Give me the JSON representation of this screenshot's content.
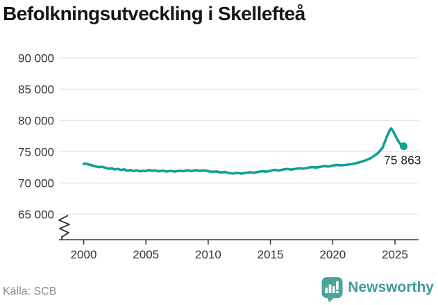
{
  "title": "Befolkningsutveckling i Skellefteå",
  "source": "Källa: SCB",
  "branding": {
    "name": "Newsworthy"
  },
  "colors": {
    "line": "#10a096",
    "grid": "#dedede",
    "axis": "#3c3c3c",
    "tick_text": "#333333",
    "end_label": "#1f1f1f",
    "title": "#161616",
    "muted": "#8c8c8c",
    "brand_text": "#3f9b95",
    "brand_square": "#4ba39d"
  },
  "chart_data": {
    "type": "line",
    "title": "Befolkningsutveckling i Skellefteå",
    "xlabel": "",
    "ylabel": "",
    "grid": "horizontal",
    "legend": "none",
    "axis_break_bottom_left": true,
    "x_ticks": [
      2000,
      2005,
      2010,
      2015,
      2020,
      2025
    ],
    "x_tick_labels": [
      "2000",
      "2005",
      "2010",
      "2015",
      "2020",
      "2025"
    ],
    "y_ticks": [
      90000,
      85000,
      80000,
      75000,
      70000,
      65000
    ],
    "y_tick_labels": [
      "90 000",
      "85 000",
      "80 000",
      "75 000",
      "70 000",
      "65 000"
    ],
    "ylim_display": [
      65000,
      90000
    ],
    "xlim_display": [
      1998.1,
      2026.9
    ],
    "end_label": "75 863",
    "series": [
      {
        "name": "Befolkning",
        "end_value": 75863,
        "points": [
          [
            2000.0,
            73050
          ],
          [
            2000.17,
            73110
          ],
          [
            2000.33,
            72980
          ],
          [
            2000.5,
            72900
          ],
          [
            2000.75,
            72760
          ],
          [
            2001.0,
            72620
          ],
          [
            2001.25,
            72520
          ],
          [
            2001.5,
            72580
          ],
          [
            2001.75,
            72420
          ],
          [
            2002.0,
            72280
          ],
          [
            2002.25,
            72340
          ],
          [
            2002.5,
            72160
          ],
          [
            2002.75,
            72240
          ],
          [
            2003.0,
            72060
          ],
          [
            2003.25,
            72170
          ],
          [
            2003.5,
            71960
          ],
          [
            2003.75,
            72070
          ],
          [
            2004.0,
            71900
          ],
          [
            2004.25,
            72020
          ],
          [
            2004.5,
            71860
          ],
          [
            2004.75,
            71970
          ],
          [
            2005.0,
            71900
          ],
          [
            2005.25,
            72060
          ],
          [
            2005.5,
            71930
          ],
          [
            2005.75,
            72010
          ],
          [
            2006.0,
            71860
          ],
          [
            2006.33,
            71970
          ],
          [
            2006.66,
            71820
          ],
          [
            2007.0,
            71920
          ],
          [
            2007.33,
            71810
          ],
          [
            2007.66,
            71950
          ],
          [
            2008.0,
            71890
          ],
          [
            2008.33,
            72010
          ],
          [
            2008.66,
            71900
          ],
          [
            2009.0,
            72050
          ],
          [
            2009.33,
            71940
          ],
          [
            2009.66,
            72010
          ],
          [
            2010.0,
            71890
          ],
          [
            2010.33,
            71760
          ],
          [
            2010.66,
            71850
          ],
          [
            2011.0,
            71670
          ],
          [
            2011.33,
            71760
          ],
          [
            2011.66,
            71590
          ],
          [
            2012.0,
            71500
          ],
          [
            2012.33,
            71610
          ],
          [
            2012.66,
            71500
          ],
          [
            2013.0,
            71600
          ],
          [
            2013.33,
            71710
          ],
          [
            2013.66,
            71620
          ],
          [
            2014.0,
            71760
          ],
          [
            2014.33,
            71870
          ],
          [
            2014.66,
            71800
          ],
          [
            2015.0,
            71950
          ],
          [
            2015.33,
            72090
          ],
          [
            2015.66,
            71990
          ],
          [
            2016.0,
            72130
          ],
          [
            2016.33,
            72240
          ],
          [
            2016.66,
            72130
          ],
          [
            2017.0,
            72240
          ],
          [
            2017.33,
            72370
          ],
          [
            2017.66,
            72280
          ],
          [
            2018.0,
            72420
          ],
          [
            2018.33,
            72530
          ],
          [
            2018.66,
            72460
          ],
          [
            2019.0,
            72570
          ],
          [
            2019.33,
            72710
          ],
          [
            2019.66,
            72620
          ],
          [
            2020.0,
            72780
          ],
          [
            2020.33,
            72880
          ],
          [
            2020.66,
            72810
          ],
          [
            2021.0,
            72870
          ],
          [
            2021.33,
            72970
          ],
          [
            2021.66,
            73060
          ],
          [
            2022.0,
            73210
          ],
          [
            2022.33,
            73410
          ],
          [
            2022.66,
            73620
          ],
          [
            2023.0,
            73910
          ],
          [
            2023.33,
            74320
          ],
          [
            2023.66,
            74820
          ],
          [
            2024.0,
            75620
          ],
          [
            2024.2,
            76620
          ],
          [
            2024.4,
            77650
          ],
          [
            2024.6,
            78520
          ],
          [
            2024.7,
            78700
          ],
          [
            2024.85,
            78280
          ],
          [
            2025.0,
            77700
          ],
          [
            2025.2,
            76900
          ],
          [
            2025.4,
            76280
          ],
          [
            2025.6,
            75960
          ],
          [
            2025.7,
            75863
          ]
        ]
      }
    ]
  }
}
